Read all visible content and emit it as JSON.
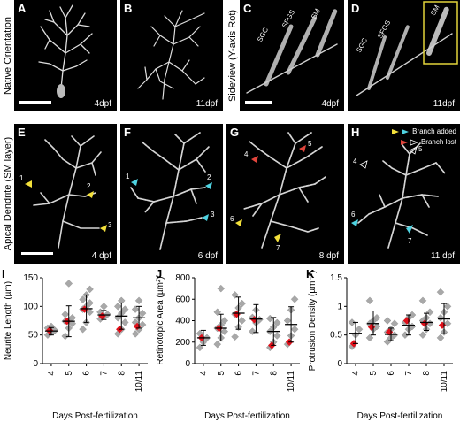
{
  "top_row": {
    "row_label": "Native Orientation",
    "row_label2": "Sideview (Y-axis Rot)",
    "panels": [
      {
        "letter": "A",
        "age": "4dpf"
      },
      {
        "letter": "B",
        "age": "11dpf"
      },
      {
        "letter": "C",
        "age": "4dpf",
        "layers": [
          "SGC",
          "SFGS",
          "SM"
        ]
      },
      {
        "letter": "D",
        "age": "11dpf",
        "layers": [
          "SGC",
          "SFGS",
          "SM"
        ]
      }
    ]
  },
  "middle_row": {
    "row_label": "Apical Dendrite (SM layer)",
    "legend": {
      "added": "Branch added",
      "lost": "Branch lost"
    },
    "panels": [
      {
        "letter": "E",
        "age": "4 dpf",
        "numbers": [
          "1",
          "2",
          "3"
        ]
      },
      {
        "letter": "F",
        "age": "6 dpf",
        "numbers": [
          "1",
          "2",
          "3"
        ]
      },
      {
        "letter": "G",
        "age": "8 dpf",
        "numbers": [
          "4",
          "5",
          "6",
          "7"
        ]
      },
      {
        "letter": "H",
        "age": "11 dpf",
        "numbers": [
          "4",
          "5",
          "6",
          "7"
        ]
      }
    ]
  },
  "colors": {
    "marker": "#a8a8a8",
    "highlight": "#e0101a",
    "added_yellow": "#f3e03b",
    "added_cyan": "#4fd2e0",
    "lost_red": "#e2453c"
  },
  "chart_data": [
    {
      "letter": "I",
      "type": "scatter",
      "ylabel": "Neurite Length (µm)",
      "xlabel": "Days Post-fertilization",
      "categories": [
        "4",
        "5",
        "6",
        "7",
        "8",
        "10/11"
      ],
      "ylim": [
        0,
        150
      ],
      "yticks": [
        0,
        50,
        100,
        150
      ],
      "points": [
        [
          50,
          55,
          58,
          62,
          65
        ],
        [
          48,
          62,
          70,
          74,
          75,
          80,
          86,
          140
        ],
        [
          60,
          72,
          90,
          95,
          100,
          106,
          112,
          120,
          130
        ],
        [
          78,
          82,
          86,
          90,
          100
        ],
        [
          52,
          60,
          72,
          80,
          88,
          95,
          100,
          110
        ],
        [
          52,
          60,
          68,
          72,
          80,
          88,
          95,
          110
        ]
      ],
      "highlight": [
        58,
        74,
        95,
        83,
        60,
        65
      ],
      "mean": [
        57,
        74,
        96,
        85,
        83,
        80
      ],
      "sd_low": [
        50,
        47,
        72,
        77,
        60,
        62
      ],
      "sd_high": [
        63,
        101,
        120,
        93,
        106,
        100
      ]
    },
    {
      "letter": "J",
      "type": "scatter",
      "ylabel": "Retinotopic Area (µm²)",
      "xlabel": "Days Post-fertilization",
      "categories": [
        "4",
        "5",
        "6",
        "7",
        "8",
        "10/11"
      ],
      "ylim": [
        0,
        800
      ],
      "yticks": [
        0,
        200,
        400,
        600,
        800
      ],
      "points": [
        [
          150,
          200,
          240,
          280
        ],
        [
          180,
          240,
          300,
          330,
          360,
          400,
          480,
          700
        ],
        [
          250,
          340,
          400,
          460,
          520,
          560,
          640
        ],
        [
          300,
          380,
          410,
          430,
          500
        ],
        [
          150,
          200,
          260,
          300,
          340,
          380,
          420
        ],
        [
          180,
          260,
          320,
          400,
          500,
          600
        ]
      ],
      "highlight": [
        240,
        330,
        460,
        410,
        170,
        200
      ],
      "mean": [
        240,
        330,
        470,
        415,
        300,
        365
      ],
      "sd_low": [
        170,
        210,
        320,
        290,
        170,
        200
      ],
      "sd_high": [
        310,
        460,
        620,
        550,
        430,
        530
      ]
    },
    {
      "letter": "K",
      "type": "scatter",
      "ylabel": "Protrusion Density (µm⁻¹)",
      "xlabel": "Days Post-fertilization",
      "categories": [
        "4",
        "5",
        "6",
        "7",
        "8",
        "10/11"
      ],
      "ylim": [
        0,
        1.5
      ],
      "yticks": [
        0,
        0.5,
        1,
        1.5
      ],
      "points": [
        [
          0.3,
          0.5,
          0.6,
          0.72
        ],
        [
          0.45,
          0.6,
          0.65,
          0.7,
          0.75,
          0.8,
          1.1
        ],
        [
          0.38,
          0.45,
          0.5,
          0.55,
          0.6,
          0.7,
          0.75
        ],
        [
          0.5,
          0.6,
          0.65,
          0.72,
          0.8,
          0.85
        ],
        [
          0.5,
          0.6,
          0.7,
          0.75,
          0.8,
          0.9,
          1.1
        ],
        [
          0.45,
          0.55,
          0.7,
          0.8,
          0.9,
          1.0,
          1.25
        ]
      ],
      "highlight": [
        0.35,
        0.64,
        0.55,
        0.75,
        0.7,
        0.67
      ],
      "mean": [
        0.53,
        0.7,
        0.51,
        0.67,
        0.72,
        0.78
      ],
      "sd_low": [
        0.35,
        0.5,
        0.4,
        0.5,
        0.58,
        0.52
      ],
      "sd_high": [
        0.72,
        0.92,
        0.62,
        0.85,
        0.88,
        1.05
      ]
    }
  ]
}
